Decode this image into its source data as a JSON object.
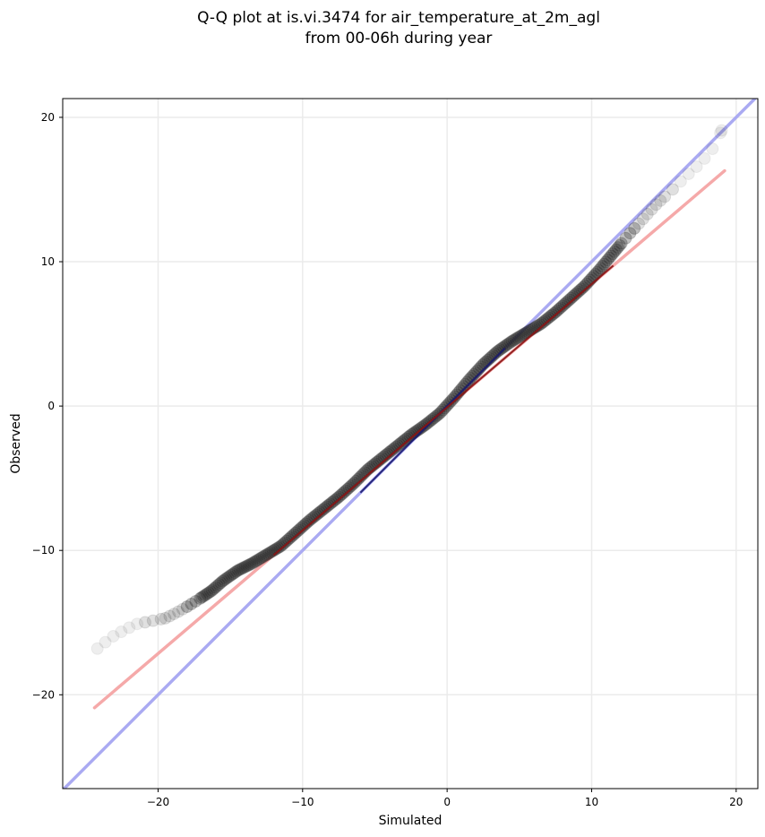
{
  "chart_data": {
    "type": "scatter",
    "title_line1": "Q-Q plot at is.vi.3474 for air_temperature_at_2m_agl",
    "title_line2": "from 00-06h during year",
    "xlabel": "Simulated",
    "ylabel": "Observed",
    "xlim": [
      -26.6,
      21.5
    ],
    "ylim": [
      -26.5,
      21.3
    ],
    "grid": true,
    "x_ticks": [
      -20,
      -10,
      0,
      10,
      20
    ],
    "y_ticks": [
      -20,
      -10,
      0,
      10,
      20
    ],
    "x_tick_labels": [
      "−20",
      "−10",
      "0",
      "10",
      "20"
    ],
    "y_tick_labels": [
      "−20",
      "−10",
      "0",
      "10",
      "20"
    ],
    "identity_line": {
      "color": "#aaaaf2",
      "from": [
        -26.6,
        -26.6
      ],
      "to": [
        21.5,
        21.5
      ]
    },
    "fit_line": {
      "color": "#f5a9a9",
      "from": [
        -24.4,
        -20.9
      ],
      "to": [
        19.2,
        16.3
      ]
    },
    "quantile_curve": {
      "x": [
        -24.2,
        -23.2,
        -22.3,
        -21.5,
        -20.5,
        -19.5,
        -18.7,
        -18.0,
        -17.2,
        -16.3,
        -15.5,
        -14.5,
        -13.5,
        -12.5,
        -11.5,
        -10.5,
        -9.5,
        -8.5,
        -7.5,
        -6.5,
        -5.5,
        -4.5,
        -3.5,
        -2.5,
        -1.5,
        -0.5,
        0.5,
        1.5,
        2.5,
        3.5,
        4.5,
        5.5,
        6.5,
        7.5,
        8.5,
        9.5,
        10.5,
        11.5,
        12.5,
        13.5,
        14.5,
        15.5,
        16.5,
        17.5,
        18.3,
        19.0
      ],
      "y": [
        -16.8,
        -16.0,
        -15.5,
        -15.1,
        -14.9,
        -14.7,
        -14.3,
        -13.9,
        -13.4,
        -12.8,
        -12.1,
        -11.4,
        -10.9,
        -10.3,
        -9.7,
        -8.8,
        -7.9,
        -7.1,
        -6.3,
        -5.4,
        -4.4,
        -3.6,
        -2.8,
        -2.0,
        -1.3,
        -0.5,
        0.6,
        1.8,
        2.9,
        3.8,
        4.5,
        5.1,
        5.7,
        6.5,
        7.4,
        8.3,
        9.4,
        10.6,
        11.8,
        12.9,
        14.0,
        14.9,
        15.9,
        16.8,
        17.7,
        19.1
      ]
    }
  }
}
